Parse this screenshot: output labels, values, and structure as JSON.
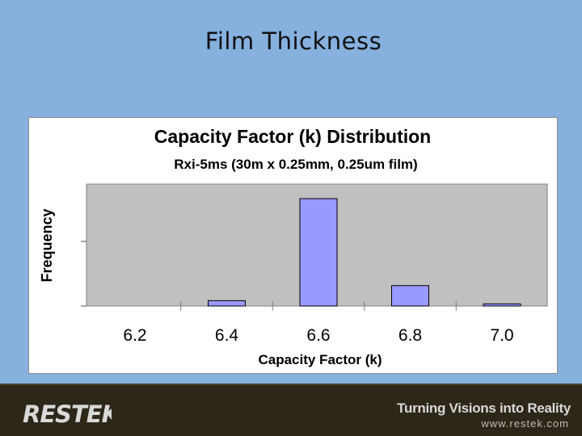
{
  "slide": {
    "title": "Film Thickness"
  },
  "chart_data": {
    "type": "bar",
    "title": "Capacity Factor (k) Distribution",
    "subtitle": "Rxi-5ms (30m x 0.25mm, 0.25um film)",
    "xlabel": "Capacity Factor (k)",
    "ylabel": "Frequency",
    "x_ticks": [
      "6.2",
      "6.4",
      "6.6",
      "6.8",
      "7.0"
    ],
    "bars": [
      {
        "x": 6.2,
        "value": 0
      },
      {
        "x": 6.4,
        "value": 0.05
      },
      {
        "x": 6.6,
        "value": 1.0
      },
      {
        "x": 6.8,
        "value": 0.19
      },
      {
        "x": 7.0,
        "value": 0.02
      }
    ],
    "ylim": [
      0,
      1.0
    ],
    "colors": {
      "bar": "#9999ff",
      "plot_bg": "#c0c0c0"
    },
    "grid": false,
    "legend": "none"
  },
  "footer": {
    "logo": "RESTEK",
    "tagline": "Turning Visions into Reality",
    "url": "www.restek.com",
    "colors": {
      "background": "#2c2718",
      "logo": "#d9d9d9"
    }
  }
}
